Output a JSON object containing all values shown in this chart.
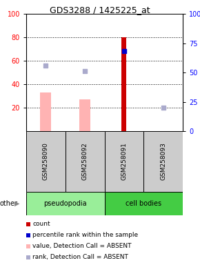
{
  "title": "GDS3288 / 1425225_at",
  "samples": [
    "GSM258090",
    "GSM258092",
    "GSM258091",
    "GSM258093"
  ],
  "ylim_left": [
    0,
    100
  ],
  "ylim_right": [
    0,
    100
  ],
  "yticks_left": [
    20,
    40,
    60,
    80,
    100
  ],
  "yticks_right": [
    0,
    25,
    50,
    75,
    100
  ],
  "ytick_labels_right": [
    "0",
    "25",
    "50",
    "75",
    "100%"
  ],
  "red_bars": [
    null,
    null,
    80,
    null
  ],
  "pink_bars": [
    33,
    27,
    null,
    null
  ],
  "blue_dots": [
    null,
    null,
    68,
    null
  ],
  "lavender_dots": [
    56,
    51,
    null,
    20
  ],
  "pink_bar_width": 0.28,
  "red_bar_width": 0.12,
  "dot_size": 18,
  "red_color": "#cc0000",
  "pink_color": "#ffb3b3",
  "blue_color": "#0000cc",
  "lavender_color": "#aaaacc",
  "pseudopodia_color": "#99ee99",
  "cell_bodies_color": "#44cc44",
  "gray_color": "#cccccc",
  "legend_items": [
    {
      "label": "count",
      "color": "#cc0000"
    },
    {
      "label": "percentile rank within the sample",
      "color": "#0000cc"
    },
    {
      "label": "value, Detection Call = ABSENT",
      "color": "#ffb3b3"
    },
    {
      "label": "rank, Detection Call = ABSENT",
      "color": "#aaaacc"
    }
  ]
}
